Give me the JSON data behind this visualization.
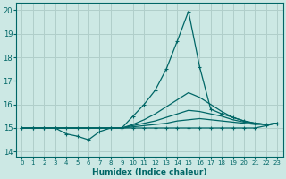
{
  "xlabel": "Humidex (Indice chaleur)",
  "ylabel": "",
  "bg_color": "#cce8e4",
  "grid_color": "#b0ceca",
  "line_color": "#006666",
  "xlim": [
    -0.5,
    23.5
  ],
  "ylim": [
    13.8,
    20.3
  ],
  "yticks": [
    14,
    15,
    16,
    17,
    18,
    19,
    20
  ],
  "xticks": [
    0,
    1,
    2,
    3,
    4,
    5,
    6,
    7,
    8,
    9,
    10,
    11,
    12,
    13,
    14,
    15,
    16,
    17,
    18,
    19,
    20,
    21,
    22,
    23
  ],
  "lines": [
    {
      "x": [
        0,
        1,
        2,
        3,
        4,
        5,
        6,
        7,
        8,
        9,
        10,
        11,
        12,
        13,
        14,
        15,
        16,
        17,
        18,
        19,
        20,
        21,
        22,
        23
      ],
      "y": [
        15.0,
        15.0,
        15.0,
        15.0,
        14.75,
        14.65,
        14.5,
        14.85,
        15.0,
        15.0,
        15.0,
        15.0,
        15.0,
        15.0,
        15.0,
        15.0,
        15.0,
        15.0,
        15.0,
        15.0,
        15.0,
        15.0,
        15.1,
        15.2
      ],
      "marker": "+",
      "lw": 0.9
    },
    {
      "x": [
        0,
        1,
        2,
        3,
        4,
        5,
        6,
        7,
        8,
        9,
        10,
        11,
        12,
        13,
        14,
        15,
        16,
        17,
        18,
        19,
        20,
        21,
        22,
        23
      ],
      "y": [
        15.0,
        15.0,
        15.0,
        15.0,
        15.0,
        15.0,
        15.0,
        15.0,
        15.0,
        15.0,
        15.05,
        15.1,
        15.15,
        15.2,
        15.3,
        15.35,
        15.4,
        15.35,
        15.3,
        15.25,
        15.2,
        15.15,
        15.15,
        15.2
      ],
      "marker": null,
      "lw": 0.9
    },
    {
      "x": [
        0,
        1,
        2,
        3,
        4,
        5,
        6,
        7,
        8,
        9,
        10,
        11,
        12,
        13,
        14,
        15,
        16,
        17,
        18,
        19,
        20,
        21,
        22,
        23
      ],
      "y": [
        15.0,
        15.0,
        15.0,
        15.0,
        15.0,
        15.0,
        15.0,
        15.0,
        15.0,
        15.0,
        15.1,
        15.2,
        15.3,
        15.45,
        15.6,
        15.75,
        15.7,
        15.6,
        15.5,
        15.35,
        15.25,
        15.2,
        15.15,
        15.2
      ],
      "marker": null,
      "lw": 0.9
    },
    {
      "x": [
        0,
        1,
        2,
        3,
        4,
        5,
        6,
        7,
        8,
        9,
        10,
        11,
        12,
        13,
        14,
        15,
        16,
        17,
        18,
        19,
        20,
        21,
        22,
        23
      ],
      "y": [
        15.0,
        15.0,
        15.0,
        15.0,
        15.0,
        15.0,
        15.0,
        15.0,
        15.0,
        15.0,
        15.15,
        15.35,
        15.6,
        15.9,
        16.2,
        16.5,
        16.3,
        16.0,
        15.7,
        15.45,
        15.3,
        15.2,
        15.15,
        15.2
      ],
      "marker": null,
      "lw": 0.9
    },
    {
      "x": [
        0,
        1,
        2,
        3,
        4,
        5,
        6,
        7,
        8,
        9,
        10,
        11,
        12,
        13,
        14,
        15,
        16,
        17,
        18,
        19,
        20,
        21,
        22,
        23
      ],
      "y": [
        15.0,
        15.0,
        15.0,
        15.0,
        15.0,
        15.0,
        15.0,
        15.0,
        15.0,
        15.0,
        15.5,
        16.0,
        16.6,
        17.5,
        18.7,
        19.95,
        17.6,
        15.8,
        15.6,
        15.45,
        15.3,
        15.2,
        15.15,
        15.2
      ],
      "marker": "+",
      "lw": 0.9
    }
  ]
}
